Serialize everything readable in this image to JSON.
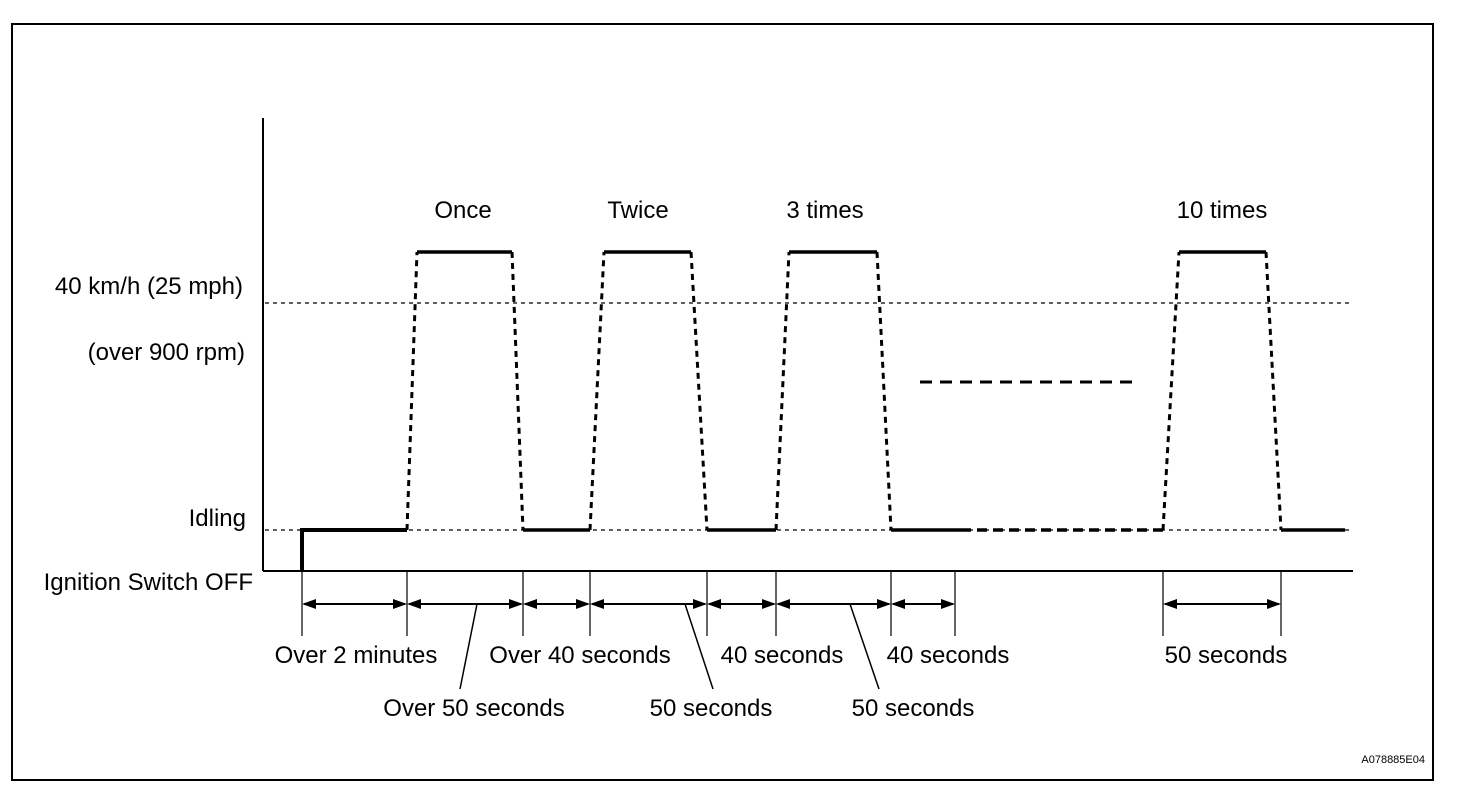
{
  "cycle_labels": {
    "once": "Once",
    "twice": "Twice",
    "three": "3 times",
    "ten": "10 times"
  },
  "level_labels": {
    "speed": "40 km/h (25 mph)",
    "rpm": "(over 900 rpm)",
    "idling": "Idling",
    "ignition_off": "Ignition Switch OFF"
  },
  "durations": {
    "d1": "Over 2 minutes",
    "d2": "Over 50 seconds",
    "d3": "Over 40 seconds",
    "d4": "50 seconds",
    "d5": "40 seconds",
    "d6": "50 seconds",
    "d7": "40 seconds",
    "d8": "50 seconds"
  },
  "figure_id": "A078885E04"
}
